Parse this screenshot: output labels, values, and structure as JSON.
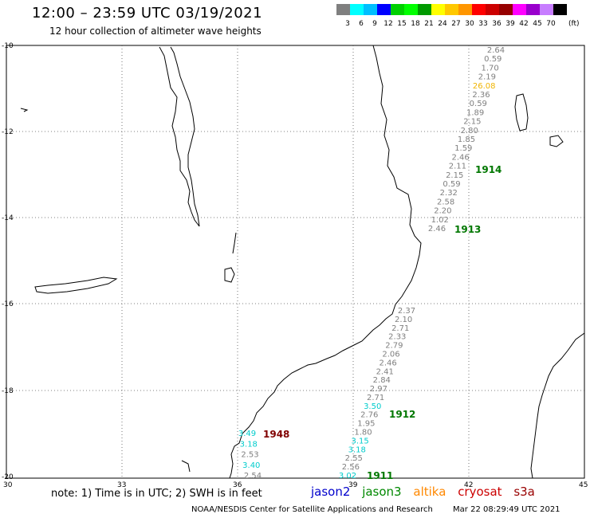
{
  "header": {
    "title": "12:00 – 23:59 UTC 03/19/2021",
    "subtitle": "12 hour collection of altimeter wave heights"
  },
  "scale": {
    "unit": "(ft)",
    "colors": [
      "#7f7f7f",
      "#00ffff",
      "#00bfff",
      "#0000ff",
      "#00d000",
      "#00ff00",
      "#009a00",
      "#ffff00",
      "#ffc800",
      "#ff9600",
      "#ff0000",
      "#cc0000",
      "#960000",
      "#ff00ff",
      "#9900cc",
      "#c77dff",
      "#000000"
    ],
    "labels": [
      "3",
      "6",
      "9",
      "12",
      "15",
      "18",
      "21",
      "24",
      "27",
      "30",
      "33",
      "36",
      "39",
      "42",
      "45",
      "70"
    ]
  },
  "axes": {
    "lon_labels": [
      "30",
      "33",
      "36",
      "39",
      "42",
      "45"
    ],
    "lat_labels": [
      "-10",
      "-12",
      "-14",
      "-16",
      "-18",
      "-20"
    ]
  },
  "passes": [
    {
      "name": "1914",
      "color": "#007700",
      "satellite": "jason3"
    },
    {
      "name": "1913",
      "color": "#007700",
      "satellite": "jason3"
    },
    {
      "name": "1912",
      "color": "#007700",
      "satellite": "jason3"
    },
    {
      "name": "1911",
      "color": "#007700",
      "satellite": "jason3"
    },
    {
      "name": "1948",
      "color": "#800000",
      "satellite": "cryosat"
    }
  ],
  "track_values": {
    "north": [
      {
        "v": "2.64",
        "c": "#7f7f7f"
      },
      {
        "v": "0.59",
        "c": "#7f7f7f"
      },
      {
        "v": "1.70",
        "c": "#7f7f7f"
      },
      {
        "v": "2.19",
        "c": "#7f7f7f"
      },
      {
        "v": "26.08",
        "c": "#f0b400"
      },
      {
        "v": "2.36",
        "c": "#7f7f7f"
      },
      {
        "v": "0.59",
        "c": "#7f7f7f"
      },
      {
        "v": "1.89",
        "c": "#7f7f7f"
      },
      {
        "v": "2.15",
        "c": "#7f7f7f"
      },
      {
        "v": "2.80",
        "c": "#7f7f7f"
      },
      {
        "v": "1.85",
        "c": "#7f7f7f"
      },
      {
        "v": "1.59",
        "c": "#7f7f7f"
      },
      {
        "v": "2.46",
        "c": "#7f7f7f"
      },
      {
        "v": "2.11",
        "c": "#7f7f7f"
      },
      {
        "v": "2.15",
        "c": "#7f7f7f"
      },
      {
        "v": "0.59",
        "c": "#7f7f7f"
      },
      {
        "v": "2.32",
        "c": "#7f7f7f"
      },
      {
        "v": "2.58",
        "c": "#7f7f7f"
      },
      {
        "v": "2.20",
        "c": "#7f7f7f"
      },
      {
        "v": "1.02",
        "c": "#7f7f7f"
      },
      {
        "v": "2.46",
        "c": "#7f7f7f"
      }
    ],
    "south": [
      {
        "v": "2.37",
        "c": "#7f7f7f"
      },
      {
        "v": "2.10",
        "c": "#7f7f7f"
      },
      {
        "v": "2.71",
        "c": "#7f7f7f"
      },
      {
        "v": "2.33",
        "c": "#7f7f7f"
      },
      {
        "v": "2.79",
        "c": "#7f7f7f"
      },
      {
        "v": "2.06",
        "c": "#7f7f7f"
      },
      {
        "v": "2.46",
        "c": "#7f7f7f"
      },
      {
        "v": "2.41",
        "c": "#7f7f7f"
      },
      {
        "v": "2.84",
        "c": "#7f7f7f"
      },
      {
        "v": "2.97",
        "c": "#7f7f7f"
      },
      {
        "v": "2.71",
        "c": "#7f7f7f"
      },
      {
        "v": "3.50",
        "c": "#00cccc"
      },
      {
        "v": "2.76",
        "c": "#7f7f7f"
      },
      {
        "v": "1.95",
        "c": "#7f7f7f"
      },
      {
        "v": "1.80",
        "c": "#7f7f7f"
      },
      {
        "v": "3.15",
        "c": "#00cccc"
      },
      {
        "v": "3.18",
        "c": "#00cccc"
      },
      {
        "v": "2.55",
        "c": "#7f7f7f"
      },
      {
        "v": "2.56",
        "c": "#7f7f7f"
      },
      {
        "v": "3.02",
        "c": "#00cccc"
      }
    ],
    "west": [
      {
        "v": "3.49",
        "c": "#00cccc"
      },
      {
        "v": "3.18",
        "c": "#00cccc"
      },
      {
        "v": "2.53",
        "c": "#7f7f7f"
      },
      {
        "v": "3.40",
        "c": "#00cccc"
      },
      {
        "v": "2.54",
        "c": "#7f7f7f"
      }
    ]
  },
  "note": "note: 1) Time is in UTC; 2) SWH is in feet",
  "satellites": [
    {
      "name": "jason2",
      "color": "#0000cc"
    },
    {
      "name": "jason3",
      "color": "#008800"
    },
    {
      "name": "altika",
      "color": "#ff8800"
    },
    {
      "name": "cryosat",
      "color": "#cc0000"
    },
    {
      "name": "s3a",
      "color": "#990000"
    }
  ],
  "footer": {
    "credit": "NOAA/NESDIS Center for Satellite Applications and Research",
    "timestamp": "Mar 22 08:29:49 UTC 2021"
  }
}
